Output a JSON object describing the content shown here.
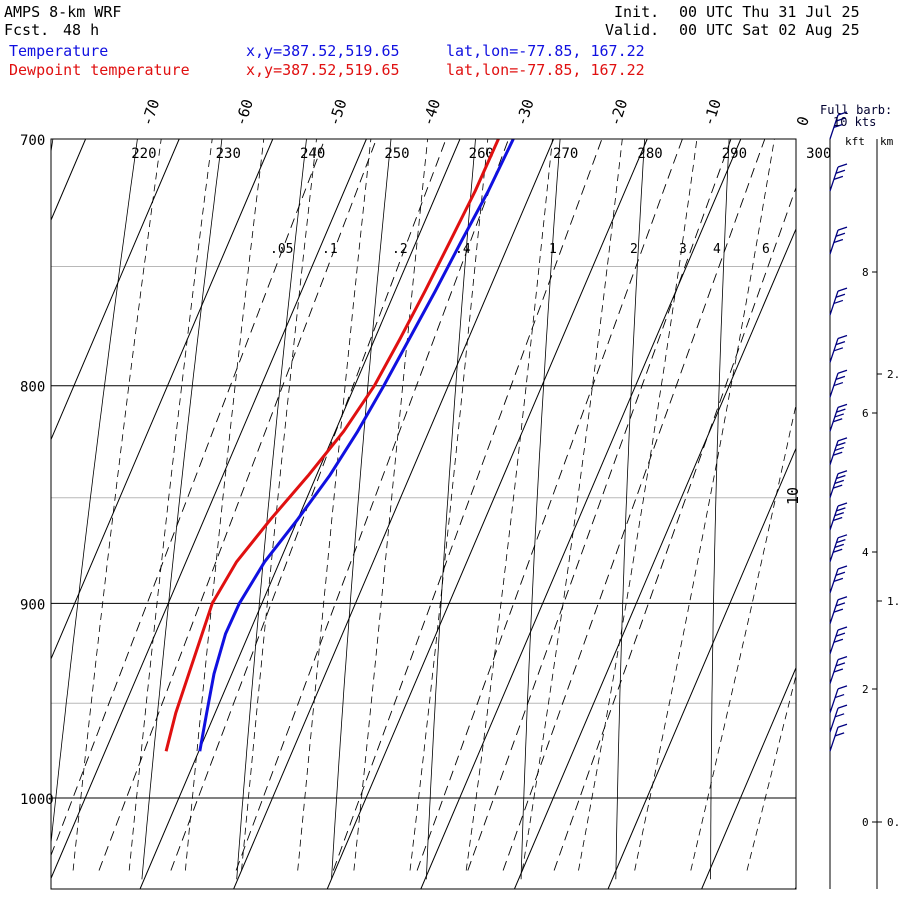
{
  "header": {
    "model": "AMPS 8-km WRF",
    "fcst_label": "Fcst.",
    "fcst_value": "48 h",
    "init_label": "Init.",
    "init_value": "00 UTC Thu 31 Jul 25",
    "valid_label": "Valid.",
    "valid_value": "00 UTC Sat 02 Aug 25"
  },
  "legend": [
    {
      "label": "Temperature",
      "xy": "x,y=387.52,519.65",
      "latlon": "lat,lon=-77.85, 167.22",
      "color": "#1010e0"
    },
    {
      "label": "Dewpoint temperature",
      "xy": "x,y=387.52,519.65",
      "latlon": "lat,lon=-77.85, 167.22",
      "color": "#e01010"
    }
  ],
  "barb_legend": {
    "line1": "Full barb:",
    "line2": "10 kts"
  },
  "height_axis": {
    "kft_label": "kft",
    "km_label": "km",
    "kft_ticks": [
      "8",
      "6",
      "4",
      "2",
      "0"
    ],
    "km_ticks": [
      "2.",
      "1.",
      "0."
    ]
  },
  "chart_data": {
    "type": "line",
    "diagram": "Skew-T log-P",
    "pressure_range_hPa": [
      1040,
      700
    ],
    "pressure_ticks": [
      "700",
      "800",
      "900",
      "1000"
    ],
    "temperature_ticks_C": [
      "-70",
      "-60",
      "-50",
      "-40",
      "-30",
      "-20",
      "-10",
      "0"
    ],
    "dry_adiabat_labels_K": [
      "220",
      "230",
      "240",
      "250",
      "260",
      "270",
      "280",
      "290",
      "300"
    ],
    "mixing_ratio_labels_gkg": [
      ".05",
      ".1",
      ".2",
      ".4",
      "1",
      "2",
      "3",
      "4",
      "6"
    ],
    "moist_adiabat_label": "10",
    "series": [
      {
        "name": "Temperature",
        "color": "#1010e0",
        "points": [
          {
            "p": 975,
            "t": -39.9
          },
          {
            "p": 955,
            "t": -40.9
          },
          {
            "p": 935,
            "t": -41.9
          },
          {
            "p": 915,
            "t": -42.5
          },
          {
            "p": 900,
            "t": -42.4
          },
          {
            "p": 880,
            "t": -41.6
          },
          {
            "p": 860,
            "t": -40.0
          },
          {
            "p": 840,
            "t": -38.6
          },
          {
            "p": 820,
            "t": -37.6
          },
          {
            "p": 800,
            "t": -36.9
          },
          {
            "p": 780,
            "t": -36.3
          },
          {
            "p": 760,
            "t": -35.7
          },
          {
            "p": 740,
            "t": -35.2
          },
          {
            "p": 720,
            "t": -34.6
          },
          {
            "p": 700,
            "t": -34.3
          }
        ]
      },
      {
        "name": "Dewpoint temperature",
        "color": "#e01010",
        "points": [
          {
            "p": 975,
            "t": -43.5
          },
          {
            "p": 955,
            "t": -44.2
          },
          {
            "p": 935,
            "t": -44.6
          },
          {
            "p": 915,
            "t": -45.0
          },
          {
            "p": 900,
            "t": -45.3
          },
          {
            "p": 880,
            "t": -44.6
          },
          {
            "p": 860,
            "t": -42.9
          },
          {
            "p": 840,
            "t": -40.9
          },
          {
            "p": 820,
            "t": -39.1
          },
          {
            "p": 800,
            "t": -37.9
          },
          {
            "p": 780,
            "t": -37.3
          },
          {
            "p": 760,
            "t": -36.8
          },
          {
            "p": 740,
            "t": -36.4
          },
          {
            "p": 720,
            "t": -36.0
          },
          {
            "p": 700,
            "t": -35.9
          }
        ]
      }
    ],
    "wind_barbs": [
      {
        "p": 700,
        "speed_kt": 30
      },
      {
        "p": 720,
        "speed_kt": 30
      },
      {
        "p": 745,
        "speed_kt": 30
      },
      {
        "p": 770,
        "speed_kt": 30
      },
      {
        "p": 790,
        "speed_kt": 30
      },
      {
        "p": 805,
        "speed_kt": 30
      },
      {
        "p": 820,
        "speed_kt": 40
      },
      {
        "p": 835,
        "speed_kt": 40
      },
      {
        "p": 850,
        "speed_kt": 40
      },
      {
        "p": 865,
        "speed_kt": 40
      },
      {
        "p": 880,
        "speed_kt": 40
      },
      {
        "p": 895,
        "speed_kt": 30
      },
      {
        "p": 910,
        "speed_kt": 30
      },
      {
        "p": 925,
        "speed_kt": 30
      },
      {
        "p": 940,
        "speed_kt": 30
      },
      {
        "p": 955,
        "speed_kt": 20
      },
      {
        "p": 965,
        "speed_kt": 20
      },
      {
        "p": 975,
        "speed_kt": 20
      }
    ]
  }
}
